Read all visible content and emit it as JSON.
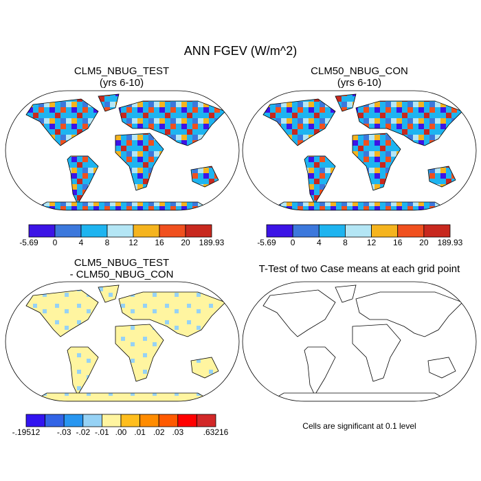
{
  "title": "ANN FGEV (W/m^2)",
  "panels": [
    {
      "title_lines": [
        "CLM5_NBUG_TEST",
        "(yrs 6-10)"
      ],
      "colorbar": {
        "colors": [
          "#3c14e6",
          "#3c78dc",
          "#1eb4f0",
          "#b4e6f5",
          "#f5b41e",
          "#f0501e",
          "#c8281e"
        ],
        "ticks": [
          -5.69,
          0,
          4,
          8,
          12,
          16,
          20,
          189.93
        ]
      }
    },
    {
      "title_lines": [
        "CLM50_NBUG_CON",
        "(yrs 6-10)"
      ],
      "colorbar": {
        "colors": [
          "#3c14e6",
          "#3c78dc",
          "#1eb4f0",
          "#b4e6f5",
          "#f5b41e",
          "#f0501e",
          "#c8281e"
        ],
        "ticks": [
          -5.69,
          0,
          4,
          8,
          12,
          16,
          20,
          189.93
        ]
      }
    },
    {
      "title_lines": [
        "CLM5_NBUG_TEST",
        "- CLM50_NBUG_CON"
      ],
      "colorbar": {
        "colors": [
          "#3214f0",
          "#3264e6",
          "#2896f0",
          "#96d2f5",
          "#fff5a0",
          "#ffbe1e",
          "#ff8c00",
          "#ff5a00",
          "#ff0000",
          "#d22828"
        ],
        "ticks": [
          {
            "value": -0.19512,
            "label": "-.19512"
          },
          null,
          {
            "value": -0.03,
            "label": "-.03"
          },
          {
            "value": -0.02,
            "label": "-.02"
          },
          {
            "value": -0.01,
            "label": "-.01"
          },
          {
            "value": 0,
            "label": ".00"
          },
          {
            "value": 0.01,
            "label": ".01"
          },
          {
            "value": 0.02,
            "label": ".02"
          },
          {
            "value": 0.03,
            "label": ".03"
          },
          null,
          {
            "value": 0.63216,
            "label": ".63216"
          }
        ]
      }
    },
    {
      "title_lines": [
        "T-Test of two Case means at each grid point"
      ],
      "note": "Cells are significant at 0.1 level"
    }
  ]
}
